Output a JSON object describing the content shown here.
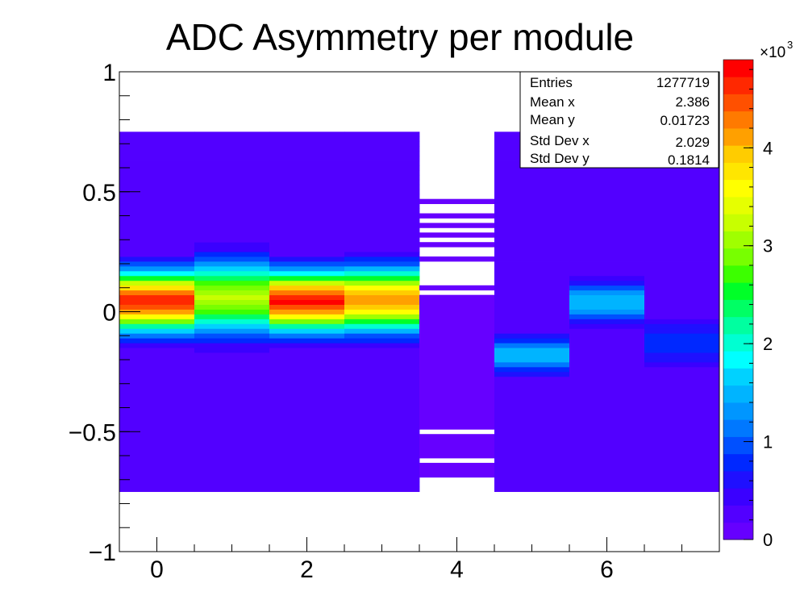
{
  "chart_data": {
    "type": "heatmap",
    "title": "ADC Asymmetry per module",
    "xlabel": "",
    "ylabel": "",
    "xlim": [
      -0.5,
      7.5
    ],
    "ylim": [
      -1,
      1
    ],
    "x_ticks": [
      {
        "value": 0,
        "label": "0"
      },
      {
        "value": 2,
        "label": "2"
      },
      {
        "value": 4,
        "label": "4"
      },
      {
        "value": 6,
        "label": "6"
      }
    ],
    "y_ticks": [
      {
        "value": 1,
        "label": "1"
      },
      {
        "value": 0.5,
        "label": "0.5"
      },
      {
        "value": 0,
        "label": "0"
      },
      {
        "value": -0.5,
        "label": "−0.5"
      },
      {
        "value": -1,
        "label": "−1"
      }
    ],
    "y_bin_width": 0.02,
    "filled_y_range": [
      -0.75,
      0.75
    ],
    "color_scale": {
      "min": 0,
      "max": 4900,
      "exponent_label": "×10",
      "exponent_power": "3",
      "ticks": [
        {
          "value": 0,
          "label": "0"
        },
        {
          "value": 1000,
          "label": "1"
        },
        {
          "value": 2000,
          "label": "2"
        },
        {
          "value": 3000,
          "label": "3"
        },
        {
          "value": 4000,
          "label": "4"
        }
      ],
      "palette": [
        "#6600ff",
        "#5200ff",
        "#3a00ff",
        "#1f10ff",
        "#0028ff",
        "#0050ff",
        "#0078ff",
        "#0096ff",
        "#00b4ff",
        "#00d2ff",
        "#00ffff",
        "#00ffd2",
        "#00ffa0",
        "#00ff64",
        "#00ff28",
        "#3cff00",
        "#78ff00",
        "#a0ff00",
        "#c8ff00",
        "#e6ff00",
        "#ffff00",
        "#ffe600",
        "#ffcc00",
        "#ffa000",
        "#ff7a00",
        "#ff5000",
        "#ff2800",
        "#ff0000"
      ]
    },
    "modules": [
      {
        "module": 0,
        "mean": 0.045,
        "sigma": 0.085,
        "peak": 4700,
        "ymin": -0.29,
        "ymax": 0.34,
        "floor": 230
      },
      {
        "module": 1,
        "mean": 0.06,
        "sigma": 0.105,
        "peak": 3150,
        "ymin": -0.29,
        "ymax": 0.36,
        "floor": 230
      },
      {
        "module": 2,
        "mean": 0.045,
        "sigma": 0.085,
        "peak": 4750,
        "ymin": -0.27,
        "ymax": 0.33,
        "floor": 230
      },
      {
        "module": 3,
        "mean": 0.05,
        "sigma": 0.09,
        "peak": 4200,
        "ymin": -0.23,
        "ymax": 0.36,
        "floor": 230
      },
      {
        "module": 4,
        "mean": 0.0,
        "sigma": 0.5,
        "peak": 0,
        "ymin": 0.07,
        "ymax": 0.07,
        "floor": 20,
        "empty_rows": [
          0.745,
          0.725,
          0.705,
          0.685,
          0.665,
          0.645,
          0.615,
          0.595,
          0.575,
          0.555,
          0.535,
          0.515,
          0.495,
          0.475,
          0.435,
          0.415,
          0.375,
          0.335,
          0.295,
          0.255,
          0.235,
          0.195,
          0.175,
          0.155,
          0.135,
          0.115,
          0.085,
          -0.505,
          -0.625,
          -0.705,
          -0.725,
          -0.745
        ]
      },
      {
        "module": 5,
        "mean": -0.18,
        "sigma": 0.055,
        "peak": 1550,
        "ymin": -0.37,
        "ymax": 0.0,
        "floor": 230
      },
      {
        "module": 6,
        "mean": 0.04,
        "sigma": 0.06,
        "peak": 1550,
        "ymin": -0.19,
        "ymax": 0.24,
        "floor": 230
      },
      {
        "module": 7,
        "mean": -0.13,
        "sigma": 0.08,
        "peak": 820,
        "ymin": -0.29,
        "ymax": -0.04,
        "floor": 230
      }
    ]
  },
  "stats": {
    "rows": [
      {
        "name": "Entries",
        "value": "1277719"
      },
      {
        "name": "Mean x",
        "value": "2.386"
      },
      {
        "name": "Mean y",
        "value": "0.01723"
      },
      {
        "name": "Std Dev x",
        "value": "2.029"
      },
      {
        "name": "Std Dev y",
        "value": "0.1814"
      }
    ]
  }
}
